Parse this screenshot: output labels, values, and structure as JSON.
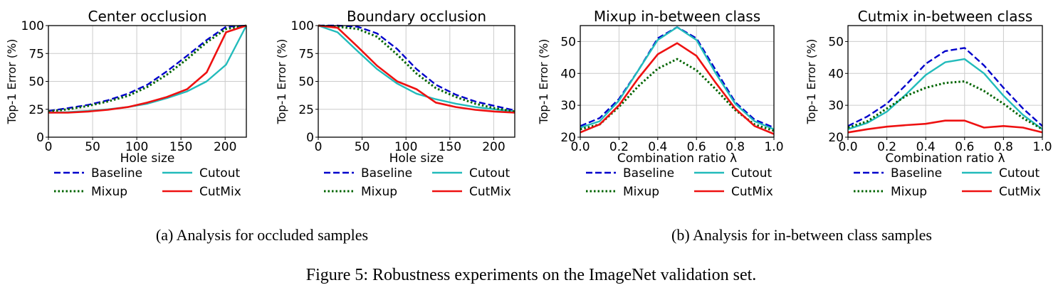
{
  "colors": {
    "baseline": "#0000cc",
    "cutout": "#22bbbb",
    "mixup": "#006400",
    "cutmix": "#ee1111",
    "grid": "#cccccc",
    "axis": "#000000"
  },
  "legend": {
    "baseline": "Baseline",
    "cutout": "Cutout",
    "mixup": "Mixup",
    "cutmix": "CutMix"
  },
  "captions": {
    "a": "(a) Analysis for occluded samples",
    "b": "(b) Analysis for in-between class samples",
    "figure": "Figure 5: Robustness experiments on the ImageNet validation set."
  },
  "chart_data": [
    {
      "type": "line",
      "title": "Center occlusion",
      "xlabel": "Hole size",
      "ylabel": "Top-1 Error (%)",
      "xlim": [
        0,
        224
      ],
      "ylim": [
        0,
        100
      ],
      "xticks": [
        0,
        50,
        100,
        150,
        200
      ],
      "yticks": [
        0,
        25,
        50,
        75,
        100
      ],
      "x": [
        0,
        22,
        45,
        67,
        90,
        112,
        134,
        157,
        179,
        201,
        224
      ],
      "grid": true,
      "legend_position": "below",
      "series": [
        {
          "key": "baseline",
          "name": "Baseline",
          "values": [
            23.5,
            26,
            29,
            33,
            39,
            47,
            59,
            73,
            87,
            99,
            100
          ]
        },
        {
          "key": "cutout",
          "name": "Cutout",
          "values": [
            22,
            22.5,
            23.5,
            25,
            27,
            30,
            35,
            41,
            50,
            65,
            100
          ]
        },
        {
          "key": "mixup",
          "name": "Mixup",
          "values": [
            23,
            25,
            28,
            32,
            37,
            45,
            56,
            70,
            85,
            97,
            100
          ]
        },
        {
          "key": "cutmix",
          "name": "CutMix",
          "values": [
            22,
            22,
            23,
            24.5,
            27,
            31,
            36,
            43,
            58,
            94,
            100
          ]
        }
      ]
    },
    {
      "type": "line",
      "title": "Boundary occlusion",
      "xlabel": "Hole size",
      "ylabel": "Top-1 Error (%)",
      "xlim": [
        0,
        224
      ],
      "ylim": [
        0,
        100
      ],
      "xticks": [
        0,
        50,
        100,
        150,
        200
      ],
      "yticks": [
        0,
        25,
        50,
        75,
        100
      ],
      "x": [
        0,
        22,
        45,
        67,
        90,
        112,
        134,
        157,
        179,
        201,
        224
      ],
      "grid": true,
      "legend_position": "below",
      "series": [
        {
          "key": "baseline",
          "name": "Baseline",
          "values": [
            100,
            100,
            99,
            93,
            79,
            61,
            47,
            38,
            32,
            28,
            24
          ]
        },
        {
          "key": "cutout",
          "name": "Cutout",
          "values": [
            100,
            94,
            77,
            61,
            48,
            39,
            34,
            30,
            27,
            25,
            23
          ]
        },
        {
          "key": "mixup",
          "name": "Mixup",
          "values": [
            100,
            99,
            97,
            90,
            74,
            57,
            44,
            36,
            30,
            26,
            23
          ]
        },
        {
          "key": "cutmix",
          "name": "CutMix",
          "values": [
            100,
            98,
            81,
            64,
            50,
            43,
            31,
            27,
            24.5,
            23,
            22
          ]
        }
      ]
    },
    {
      "type": "line",
      "title": "Mixup in-between class",
      "xlabel": "Combination ratio λ",
      "ylabel": "Top-1 Error (%)",
      "xlim": [
        0,
        1
      ],
      "ylim": [
        20,
        55
      ],
      "xticks": [
        0,
        0.2,
        0.4,
        0.6,
        0.8,
        1.0
      ],
      "xtick_labels": [
        "0.0",
        "0.2",
        "0.4",
        "0.6",
        "0.8",
        "1.0"
      ],
      "yticks": [
        20,
        30,
        40,
        50
      ],
      "x": [
        0,
        0.1,
        0.2,
        0.3,
        0.4,
        0.5,
        0.6,
        0.7,
        0.8,
        0.9,
        1.0
      ],
      "grid": true,
      "legend_position": "below",
      "series": [
        {
          "key": "baseline",
          "name": "Baseline",
          "values": [
            23.5,
            26,
            32,
            41,
            51,
            54.5,
            51,
            41,
            31,
            25.5,
            23
          ]
        },
        {
          "key": "cutout",
          "name": "Cutout",
          "values": [
            23,
            25,
            31.5,
            41,
            50.5,
            54.5,
            50.5,
            40,
            30.5,
            25,
            22.5
          ]
        },
        {
          "key": "mixup",
          "name": "Mixup",
          "values": [
            22.5,
            24,
            29.5,
            36,
            41.5,
            44.5,
            41,
            35,
            28.5,
            24,
            22
          ]
        },
        {
          "key": "cutmix",
          "name": "CutMix",
          "values": [
            21.5,
            24,
            30,
            38.5,
            46,
            49.5,
            45.5,
            37,
            29,
            23.5,
            21
          ]
        }
      ]
    },
    {
      "type": "line",
      "title": "Cutmix in-between class",
      "xlabel": "Combination ratio λ",
      "ylabel": "Top-1 Error (%)",
      "xlim": [
        0,
        1
      ],
      "ylim": [
        20,
        55
      ],
      "xticks": [
        0,
        0.2,
        0.4,
        0.6,
        0.8,
        1.0
      ],
      "xtick_labels": [
        "0.0",
        "0.2",
        "0.4",
        "0.6",
        "0.8",
        "1.0"
      ],
      "yticks": [
        20,
        30,
        40,
        50
      ],
      "x": [
        0,
        0.1,
        0.2,
        0.3,
        0.4,
        0.5,
        0.6,
        0.7,
        0.8,
        0.9,
        1.0
      ],
      "grid": true,
      "legend_position": "below",
      "series": [
        {
          "key": "baseline",
          "name": "Baseline",
          "values": [
            23.5,
            26.5,
            30.5,
            36.5,
            43,
            47,
            48,
            42.5,
            35.5,
            29,
            23.5
          ]
        },
        {
          "key": "cutout",
          "name": "Cutout",
          "values": [
            22.5,
            24.5,
            28,
            33.5,
            39.5,
            43.5,
            44.5,
            40,
            33,
            27,
            22.5
          ]
        },
        {
          "key": "mixup",
          "name": "Mixup",
          "values": [
            23,
            25,
            29,
            33,
            35.5,
            37,
            37.5,
            34.5,
            30.5,
            26,
            22.5
          ]
        },
        {
          "key": "cutmix",
          "name": "CutMix",
          "values": [
            21.5,
            22.5,
            23.3,
            23.8,
            24.2,
            25.2,
            25.2,
            23,
            23.5,
            23,
            21.5
          ]
        }
      ]
    }
  ]
}
